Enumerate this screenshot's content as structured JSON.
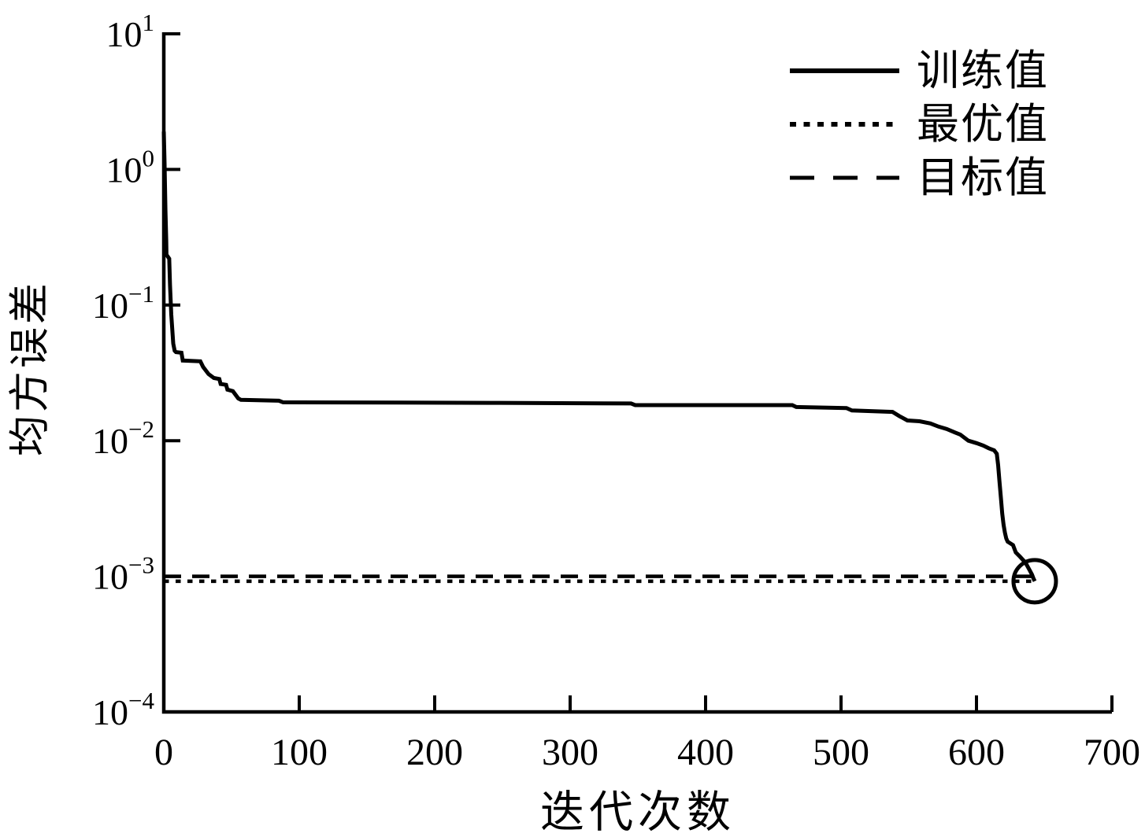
{
  "chart_data": {
    "type": "line",
    "title": "",
    "xlabel": "迭代次数",
    "ylabel": "均方误差",
    "x_ticks": [
      0,
      100,
      200,
      300,
      400,
      500,
      600,
      700
    ],
    "y_tick_exponents": [
      1,
      0,
      -1,
      -2,
      -3,
      -4
    ],
    "xlim": [
      0,
      700
    ],
    "ylim_log10": [
      -4,
      1
    ],
    "grid": false,
    "legend_position": "top-right",
    "legend": [
      {
        "label": "训练值",
        "style": "solid"
      },
      {
        "label": "最优值",
        "style": "dotted"
      },
      {
        "label": "目标值",
        "style": "dashed"
      }
    ],
    "series": [
      {
        "name": "训练值",
        "style": "solid",
        "points": [
          [
            0,
            1.9
          ],
          [
            0.6,
            1.1
          ],
          [
            1.2,
            0.5
          ],
          [
            1.8,
            0.3
          ],
          [
            2,
            0.235
          ],
          [
            4,
            0.22
          ],
          [
            4.6,
            0.14
          ],
          [
            5.5,
            0.085
          ],
          [
            7,
            0.052
          ],
          [
            8,
            0.046
          ],
          [
            9,
            0.045
          ],
          [
            13,
            0.0445
          ],
          [
            14,
            0.039
          ],
          [
            27,
            0.0385
          ],
          [
            29,
            0.035
          ],
          [
            33,
            0.031
          ],
          [
            37,
            0.029
          ],
          [
            41,
            0.0285
          ],
          [
            42,
            0.0262
          ],
          [
            46,
            0.0258
          ],
          [
            47,
            0.0238
          ],
          [
            51,
            0.0232
          ],
          [
            55,
            0.0205
          ],
          [
            57,
            0.02
          ],
          [
            85,
            0.0197
          ],
          [
            88,
            0.0192
          ],
          [
            240,
            0.019
          ],
          [
            345,
            0.0188
          ],
          [
            348,
            0.0183
          ],
          [
            464,
            0.0183
          ],
          [
            467,
            0.0177
          ],
          [
            504,
            0.0174
          ],
          [
            508,
            0.0167
          ],
          [
            538,
            0.0163
          ],
          [
            543,
            0.0152
          ],
          [
            549,
            0.0141
          ],
          [
            558,
            0.0139
          ],
          [
            566,
            0.0134
          ],
          [
            572,
            0.0127
          ],
          [
            578,
            0.0122
          ],
          [
            584,
            0.0115
          ],
          [
            588,
            0.0111
          ],
          [
            594,
            0.01
          ],
          [
            600,
            0.0096
          ],
          [
            605,
            0.0092
          ],
          [
            609,
            0.0088
          ],
          [
            613,
            0.0085
          ],
          [
            615,
            0.008
          ],
          [
            616,
            0.0066
          ],
          [
            617,
            0.005
          ],
          [
            618,
            0.0038
          ],
          [
            619,
            0.0029
          ],
          [
            620,
            0.0024
          ],
          [
            621,
            0.0021
          ],
          [
            622,
            0.0019
          ],
          [
            623,
            0.0018
          ],
          [
            627,
            0.0017
          ],
          [
            629,
            0.0015
          ],
          [
            632,
            0.0014
          ],
          [
            635,
            0.0013
          ],
          [
            637,
            0.00122
          ],
          [
            639,
            0.00112
          ],
          [
            641,
            0.00103
          ],
          [
            642,
            0.00097
          ],
          [
            643,
            0.00092
          ]
        ]
      },
      {
        "name": "最优值",
        "style": "dotted",
        "value": 0.00092,
        "x_range": [
          0,
          643
        ]
      },
      {
        "name": "目标值",
        "style": "dashed",
        "value": 0.001,
        "x_range": [
          0,
          643
        ]
      }
    ],
    "annotations": [
      {
        "type": "circle",
        "x": 643,
        "y": 0.00092,
        "meaning": "final training point reaching goal"
      }
    ],
    "colors": {
      "line": "#000000",
      "background": "#ffffff"
    }
  }
}
